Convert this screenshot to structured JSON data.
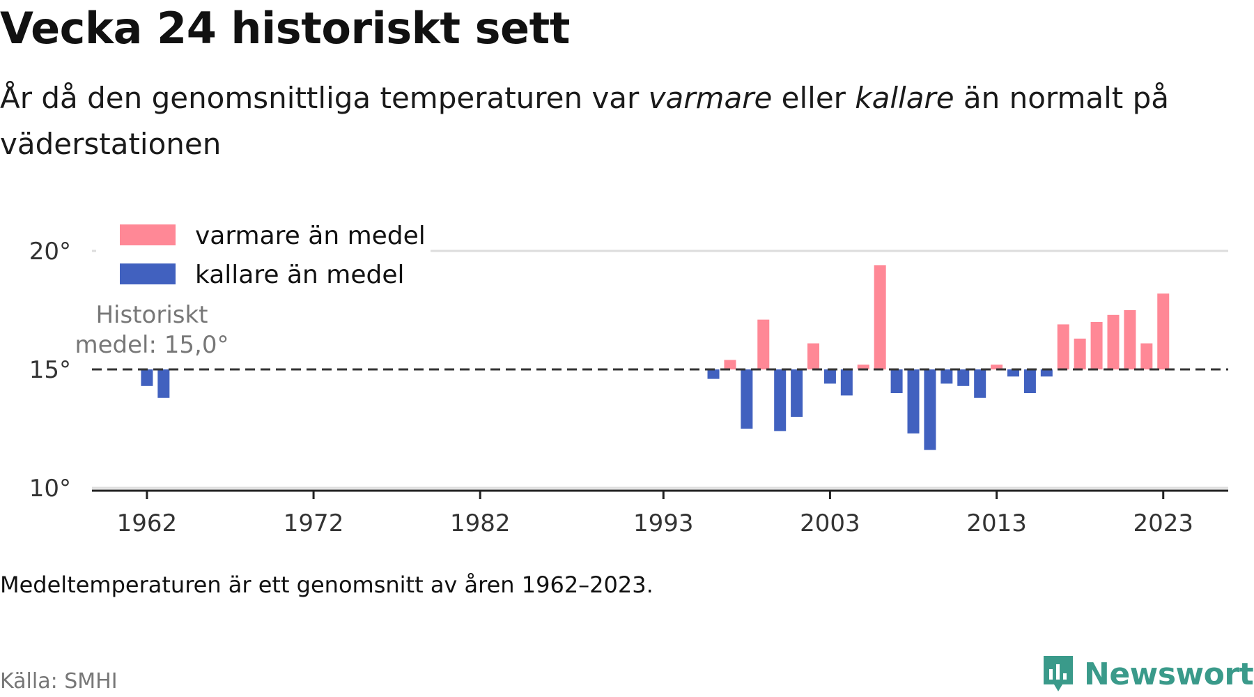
{
  "header": {
    "title": "Vecka 24 historiskt sett",
    "subtitle_pre": "År då den genomsnittliga temperaturen var ",
    "subtitle_warm": "varmare",
    "subtitle_mid": " eller ",
    "subtitle_cold": "kallare",
    "subtitle_post": " än normalt på väderstationen"
  },
  "chart_data": {
    "type": "bar",
    "baseline": 15.0,
    "baseline_label_line1": "Historiskt",
    "baseline_label_line2": "medel: 15,0°",
    "ylim": [
      10,
      20
    ],
    "yticks": [
      {
        "value": 10,
        "label": "10°"
      },
      {
        "value": 15,
        "label": "15°"
      },
      {
        "value": 20,
        "label": "20°"
      }
    ],
    "xticks": [
      1962,
      1972,
      1982,
      1993,
      2003,
      2013,
      2023
    ],
    "xlim": [
      1958.7,
      2026.9
    ],
    "grid": "horizontal",
    "legend_position": "top-left",
    "series": [
      {
        "name": "varmare än medel",
        "color": "#ff8896"
      },
      {
        "name": "kallare än medel",
        "color": "#4161bf"
      }
    ],
    "points": [
      {
        "year": 1962,
        "value": 14.3
      },
      {
        "year": 1963,
        "value": 13.8
      },
      {
        "year": 1996,
        "value": 14.6
      },
      {
        "year": 1997,
        "value": 15.4
      },
      {
        "year": 1998,
        "value": 12.5
      },
      {
        "year": 1999,
        "value": 17.1
      },
      {
        "year": 2000,
        "value": 12.4
      },
      {
        "year": 2001,
        "value": 13.0
      },
      {
        "year": 2002,
        "value": 16.1
      },
      {
        "year": 2003,
        "value": 14.4
      },
      {
        "year": 2004,
        "value": 13.9
      },
      {
        "year": 2005,
        "value": 15.2
      },
      {
        "year": 2006,
        "value": 19.4
      },
      {
        "year": 2007,
        "value": 14.0
      },
      {
        "year": 2008,
        "value": 12.3
      },
      {
        "year": 2009,
        "value": 11.6
      },
      {
        "year": 2010,
        "value": 14.4
      },
      {
        "year": 2011,
        "value": 14.3
      },
      {
        "year": 2012,
        "value": 13.8
      },
      {
        "year": 2013,
        "value": 15.2
      },
      {
        "year": 2014,
        "value": 14.7
      },
      {
        "year": 2015,
        "value": 14.0
      },
      {
        "year": 2016,
        "value": 14.7
      },
      {
        "year": 2017,
        "value": 16.9
      },
      {
        "year": 2018,
        "value": 16.3
      },
      {
        "year": 2019,
        "value": 17.0
      },
      {
        "year": 2020,
        "value": 17.3
      },
      {
        "year": 2021,
        "value": 17.5
      },
      {
        "year": 2022,
        "value": 16.1
      },
      {
        "year": 2023,
        "value": 18.2
      }
    ]
  },
  "footer": {
    "note": "Medeltemperaturen är ett genomsnitt av åren 1962–2023.",
    "source": "Källa: SMHI",
    "brand": "Newsworthy",
    "brand_color": "#3a9a8a"
  }
}
